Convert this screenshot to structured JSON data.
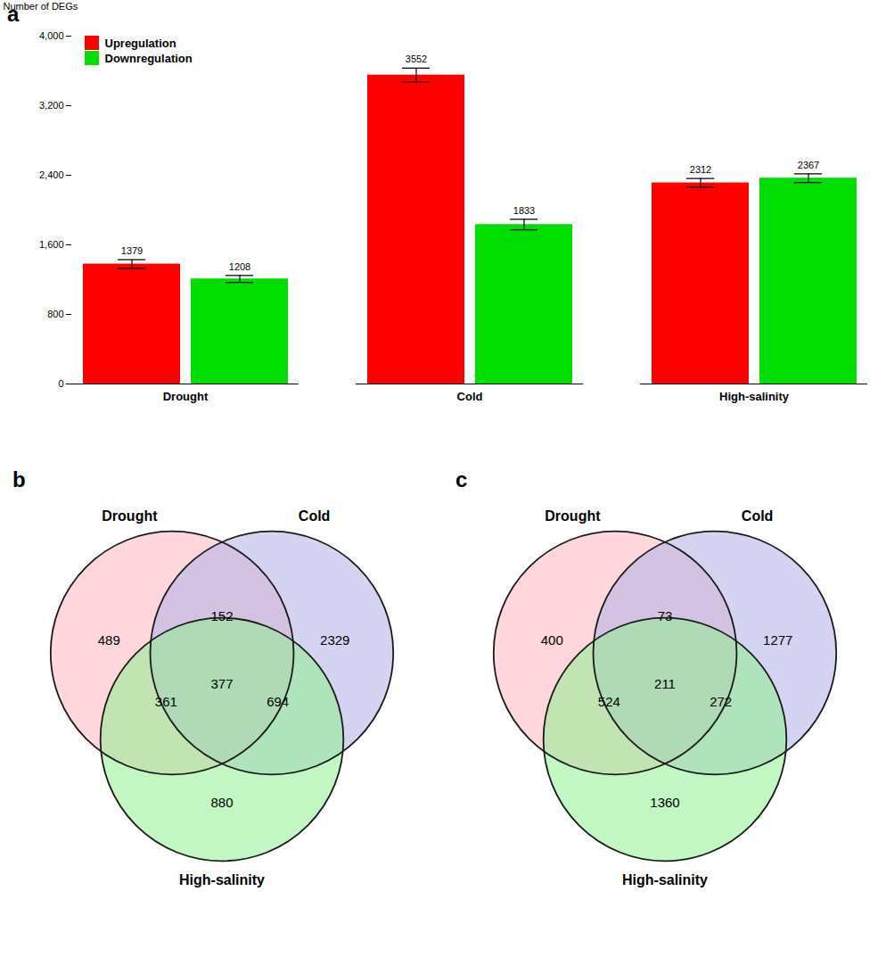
{
  "chart_data": [
    {
      "type": "bar",
      "title": "a",
      "categories": [
        "Drought",
        "Cold",
        "High-salinity"
      ],
      "series": [
        {
          "name": "Upregulation",
          "color": "#ff0000",
          "values": [
            1379,
            3552,
            2312
          ],
          "errors": [
            50,
            80,
            50
          ]
        },
        {
          "name": "Downregulation",
          "color": "#00dd00",
          "values": [
            1208,
            1833,
            2367
          ],
          "errors": [
            40,
            60,
            50
          ]
        }
      ],
      "ylabel": "Number of DEGs",
      "ylim": [
        0,
        4000
      ],
      "yticks": [
        0,
        800,
        1600,
        2400,
        3200,
        4000
      ],
      "legend": "upper left",
      "data_labels": true,
      "grid": false
    },
    {
      "type": "venn",
      "title": "b",
      "series": [
        {
          "name": "Drought",
          "color": "#ffb6c1"
        },
        {
          "name": "Cold",
          "color": "#b0b0e8"
        },
        {
          "name": "High-salinity",
          "color": "#90ee90"
        }
      ],
      "regions": [
        {
          "sets": [
            "Drought"
          ],
          "value": 489
        },
        {
          "sets": [
            "Cold"
          ],
          "value": 2329
        },
        {
          "sets": [
            "High-salinity"
          ],
          "value": 880
        },
        {
          "sets": [
            "Drought",
            "Cold"
          ],
          "value": 152
        },
        {
          "sets": [
            "Drought",
            "High-salinity"
          ],
          "value": 361
        },
        {
          "sets": [
            "Cold",
            "High-salinity"
          ],
          "value": 694
        },
        {
          "sets": [
            "Drought",
            "Cold",
            "High-salinity"
          ],
          "value": 377
        }
      ],
      "data_labels": true
    },
    {
      "type": "venn",
      "title": "c",
      "series": [
        {
          "name": "Drought",
          "color": "#ffb6c1"
        },
        {
          "name": "Cold",
          "color": "#b0b0e8"
        },
        {
          "name": "High-salinity",
          "color": "#90ee90"
        }
      ],
      "regions": [
        {
          "sets": [
            "Drought"
          ],
          "value": 400
        },
        {
          "sets": [
            "Cold"
          ],
          "value": 1277
        },
        {
          "sets": [
            "High-salinity"
          ],
          "value": 1360
        },
        {
          "sets": [
            "Drought",
            "Cold"
          ],
          "value": 73
        },
        {
          "sets": [
            "Drought",
            "High-salinity"
          ],
          "value": 524
        },
        {
          "sets": [
            "Cold",
            "High-salinity"
          ],
          "value": 272
        },
        {
          "sets": [
            "Drought",
            "Cold",
            "High-salinity"
          ],
          "value": 211
        }
      ],
      "data_labels": true
    }
  ]
}
